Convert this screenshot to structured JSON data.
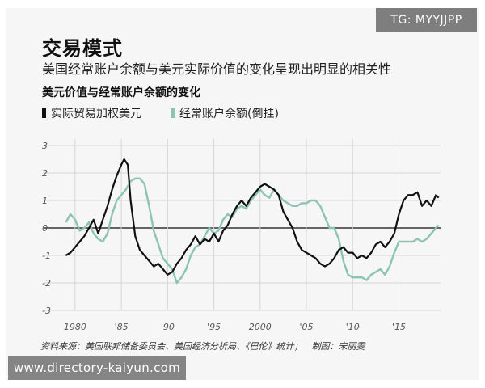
{
  "badge": {
    "text": "TG: MYYJJPP"
  },
  "header": {
    "title": "交易模式",
    "subtitle": "美国经常账户余额与美元实际价值的变化呈现出明显的相关性"
  },
  "footer": {
    "source": "资料来源：美国联邦储备委员会、美国经济分析局、《巴伦》统计；　制图：宋丽雯",
    "watermark": "www.directory-kaiyun.com"
  },
  "colors": {
    "series_dollar": "#111111",
    "series_account": "#8cc4b4",
    "zero_line": "#333333",
    "grid": "#d6d6d6",
    "tick": "#555555"
  },
  "chart_data": {
    "type": "line",
    "title": "美元价值与经常账户余额的变化",
    "xlabel": "",
    "ylabel": "",
    "xlim": [
      1978,
      2019.5
    ],
    "ylim": [
      -3,
      3
    ],
    "grid": true,
    "legend_position": "top-left",
    "x_ticks": [
      {
        "value": 1980,
        "label": "1980"
      },
      {
        "value": 1985,
        "label": "'85"
      },
      {
        "value": 1990,
        "label": "'90"
      },
      {
        "value": 1995,
        "label": "'95"
      },
      {
        "value": 2000,
        "label": "2000"
      },
      {
        "value": 2005,
        "label": "'05"
      },
      {
        "value": 2010,
        "label": "'10"
      },
      {
        "value": 2015,
        "label": "'15"
      }
    ],
    "y_ticks": [
      {
        "value": 3,
        "label": "3"
      },
      {
        "value": 2,
        "label": "2"
      },
      {
        "value": 1,
        "label": "1"
      },
      {
        "value": 0,
        "label": "0"
      },
      {
        "value": -1,
        "label": "-1"
      },
      {
        "value": -2,
        "label": "-2"
      },
      {
        "value": -3,
        "label": "-3"
      }
    ],
    "series": [
      {
        "name": "实际贸易加权美元",
        "color": "#111111",
        "points": [
          [
            1979.0,
            -1.0
          ],
          [
            1979.5,
            -0.9
          ],
          [
            1980.0,
            -0.7
          ],
          [
            1980.5,
            -0.5
          ],
          [
            1981.0,
            -0.3
          ],
          [
            1981.5,
            0.0
          ],
          [
            1982.0,
            0.3
          ],
          [
            1982.5,
            -0.2
          ],
          [
            1983.0,
            0.3
          ],
          [
            1983.5,
            0.8
          ],
          [
            1984.0,
            1.4
          ],
          [
            1984.5,
            1.9
          ],
          [
            1985.0,
            2.3
          ],
          [
            1985.3,
            2.5
          ],
          [
            1985.7,
            2.3
          ],
          [
            1986.0,
            1.0
          ],
          [
            1986.5,
            -0.3
          ],
          [
            1987.0,
            -0.8
          ],
          [
            1987.5,
            -1.0
          ],
          [
            1988.0,
            -1.2
          ],
          [
            1988.5,
            -1.4
          ],
          [
            1989.0,
            -1.3
          ],
          [
            1989.5,
            -1.5
          ],
          [
            1990.0,
            -1.7
          ],
          [
            1990.5,
            -1.6
          ],
          [
            1991.0,
            -1.3
          ],
          [
            1991.5,
            -1.1
          ],
          [
            1992.0,
            -0.8
          ],
          [
            1992.5,
            -0.6
          ],
          [
            1993.0,
            -0.3
          ],
          [
            1993.5,
            -0.6
          ],
          [
            1994.0,
            -0.4
          ],
          [
            1994.5,
            -0.5
          ],
          [
            1995.0,
            -0.2
          ],
          [
            1995.5,
            -0.5
          ],
          [
            1996.0,
            -0.1
          ],
          [
            1996.5,
            0.1
          ],
          [
            1997.0,
            0.5
          ],
          [
            1997.5,
            0.8
          ],
          [
            1998.0,
            1.0
          ],
          [
            1998.5,
            0.8
          ],
          [
            1999.0,
            1.1
          ],
          [
            1999.5,
            1.3
          ],
          [
            2000.0,
            1.5
          ],
          [
            2000.5,
            1.6
          ],
          [
            2001.0,
            1.5
          ],
          [
            2001.5,
            1.4
          ],
          [
            2002.0,
            1.2
          ],
          [
            2002.5,
            0.6
          ],
          [
            2003.0,
            0.3
          ],
          [
            2003.5,
            0.0
          ],
          [
            2004.0,
            -0.5
          ],
          [
            2004.5,
            -0.8
          ],
          [
            2005.0,
            -0.9
          ],
          [
            2005.5,
            -1.0
          ],
          [
            2006.0,
            -1.1
          ],
          [
            2006.5,
            -1.3
          ],
          [
            2007.0,
            -1.4
          ],
          [
            2007.5,
            -1.3
          ],
          [
            2008.0,
            -1.1
          ],
          [
            2008.5,
            -0.8
          ],
          [
            2009.0,
            -0.7
          ],
          [
            2009.5,
            -0.9
          ],
          [
            2010.0,
            -0.9
          ],
          [
            2010.5,
            -1.1
          ],
          [
            2011.0,
            -1.0
          ],
          [
            2011.5,
            -1.1
          ],
          [
            2012.0,
            -0.9
          ],
          [
            2012.5,
            -0.6
          ],
          [
            2013.0,
            -0.5
          ],
          [
            2013.5,
            -0.7
          ],
          [
            2014.0,
            -0.5
          ],
          [
            2014.5,
            -0.2
          ],
          [
            2015.0,
            0.5
          ],
          [
            2015.5,
            1.0
          ],
          [
            2016.0,
            1.2
          ],
          [
            2016.5,
            1.2
          ],
          [
            2017.0,
            1.3
          ],
          [
            2017.5,
            0.8
          ],
          [
            2018.0,
            1.0
          ],
          [
            2018.5,
            0.8
          ],
          [
            2019.0,
            1.2
          ],
          [
            2019.3,
            1.1
          ]
        ]
      },
      {
        "name": "经常账户余额(倒挂)",
        "color": "#8cc4b4",
        "points": [
          [
            1979.0,
            0.2
          ],
          [
            1979.5,
            0.5
          ],
          [
            1980.0,
            0.3
          ],
          [
            1980.5,
            -0.1
          ],
          [
            1981.0,
            0.0
          ],
          [
            1981.5,
            0.2
          ],
          [
            1982.0,
            -0.2
          ],
          [
            1982.5,
            -0.4
          ],
          [
            1983.0,
            -0.5
          ],
          [
            1983.5,
            -0.2
          ],
          [
            1984.0,
            0.5
          ],
          [
            1984.5,
            1.0
          ],
          [
            1985.0,
            1.2
          ],
          [
            1985.5,
            1.4
          ],
          [
            1986.0,
            1.7
          ],
          [
            1986.5,
            1.8
          ],
          [
            1987.0,
            1.8
          ],
          [
            1987.5,
            1.6
          ],
          [
            1988.0,
            0.8
          ],
          [
            1988.5,
            -0.1
          ],
          [
            1989.0,
            -0.6
          ],
          [
            1989.5,
            -1.1
          ],
          [
            1990.0,
            -1.3
          ],
          [
            1990.5,
            -1.5
          ],
          [
            1991.0,
            -2.0
          ],
          [
            1991.5,
            -1.8
          ],
          [
            1992.0,
            -1.5
          ],
          [
            1992.5,
            -1.0
          ],
          [
            1993.0,
            -0.7
          ],
          [
            1993.5,
            -0.6
          ],
          [
            1994.0,
            -0.3
          ],
          [
            1994.5,
            0.0
          ],
          [
            1995.0,
            -0.2
          ],
          [
            1995.5,
            -0.1
          ],
          [
            1996.0,
            0.3
          ],
          [
            1996.5,
            0.5
          ],
          [
            1997.0,
            0.4
          ],
          [
            1997.5,
            0.7
          ],
          [
            1998.0,
            0.8
          ],
          [
            1998.5,
            0.7
          ],
          [
            1999.0,
            1.0
          ],
          [
            1999.5,
            1.2
          ],
          [
            2000.0,
            1.4
          ],
          [
            2000.5,
            1.2
          ],
          [
            2001.0,
            1.1
          ],
          [
            2001.5,
            1.4
          ],
          [
            2002.0,
            1.2
          ],
          [
            2002.5,
            1.0
          ],
          [
            2003.0,
            0.9
          ],
          [
            2003.5,
            0.8
          ],
          [
            2004.0,
            0.8
          ],
          [
            2004.5,
            0.9
          ],
          [
            2005.0,
            0.9
          ],
          [
            2005.5,
            1.0
          ],
          [
            2006.0,
            1.0
          ],
          [
            2006.5,
            0.8
          ],
          [
            2007.0,
            0.4
          ],
          [
            2007.5,
            0.0
          ],
          [
            2008.0,
            0.0
          ],
          [
            2008.5,
            -0.4
          ],
          [
            2009.0,
            -1.2
          ],
          [
            2009.5,
            -1.7
          ],
          [
            2010.0,
            -1.8
          ],
          [
            2010.5,
            -1.8
          ],
          [
            2011.0,
            -1.8
          ],
          [
            2011.5,
            -1.9
          ],
          [
            2012.0,
            -1.7
          ],
          [
            2012.5,
            -1.6
          ],
          [
            2013.0,
            -1.5
          ],
          [
            2013.5,
            -1.7
          ],
          [
            2014.0,
            -1.4
          ],
          [
            2014.5,
            -0.9
          ],
          [
            2015.0,
            -0.5
          ],
          [
            2015.5,
            -0.5
          ],
          [
            2016.0,
            -0.5
          ],
          [
            2016.5,
            -0.5
          ],
          [
            2017.0,
            -0.4
          ],
          [
            2017.5,
            -0.5
          ],
          [
            2018.0,
            -0.4
          ],
          [
            2018.5,
            -0.2
          ],
          [
            2019.0,
            0.0
          ],
          [
            2019.3,
            0.1
          ]
        ]
      }
    ]
  }
}
